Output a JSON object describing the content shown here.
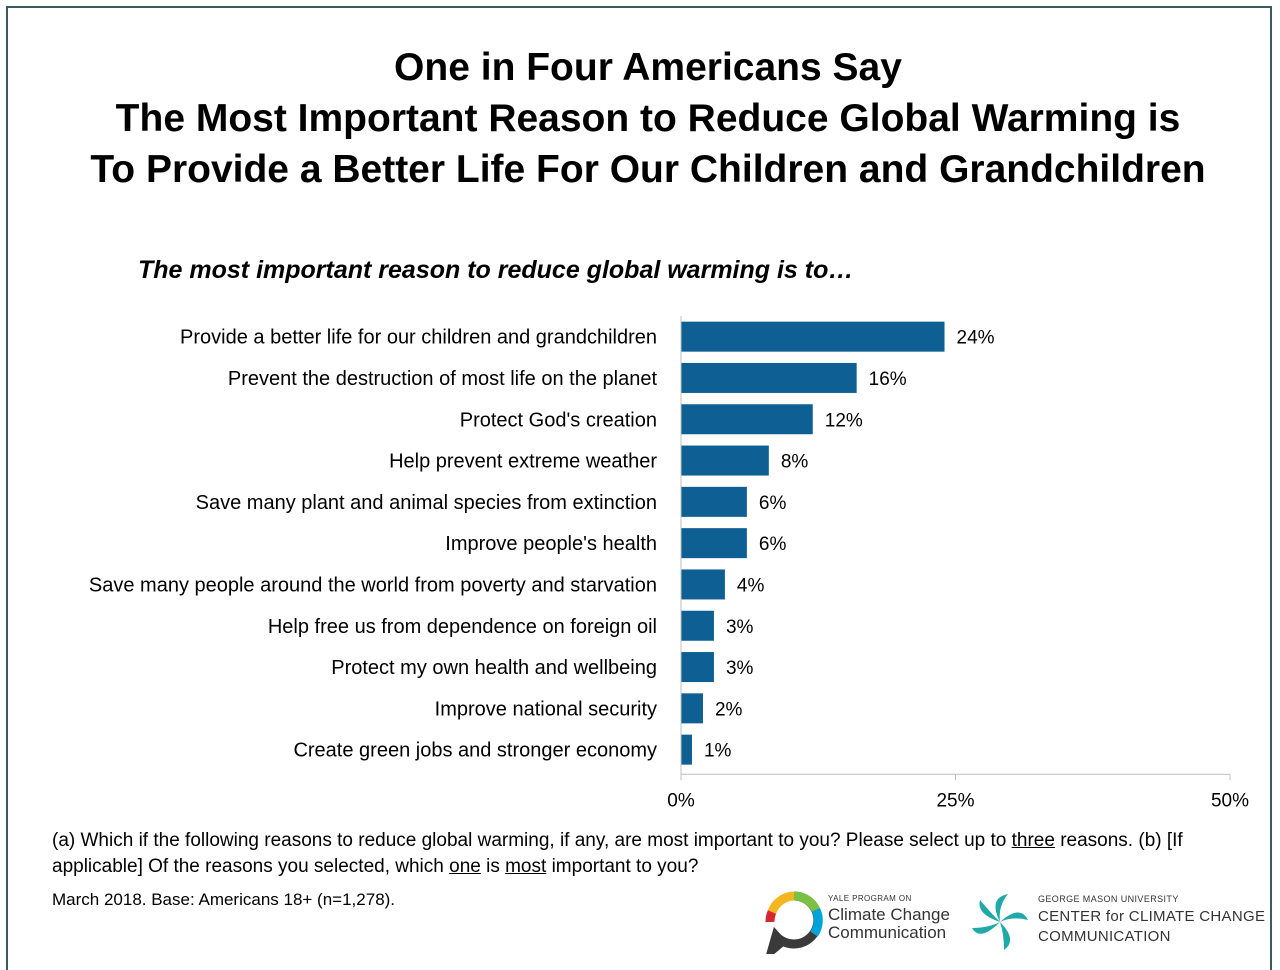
{
  "title_lines": [
    "One in Four Americans Say",
    "The Most Important Reason to Reduce Global Warming is",
    "To Provide a Better Life For Our Children and Grandchildren"
  ],
  "chart_data": {
    "type": "bar",
    "orientation": "horizontal",
    "subtitle": "The most important reason to reduce global warming is to…",
    "categories": [
      "Provide a better life for our children and grandchildren",
      "Prevent the destruction of most life on the planet",
      "Protect God's creation",
      "Help prevent extreme weather",
      "Save many plant and animal species from extinction",
      "Improve people's health",
      "Save many people around the world from poverty and starvation",
      "Help free us from dependence on foreign oil",
      "Protect my own health and wellbeing",
      "Improve national security",
      "Create green jobs and stronger economy"
    ],
    "values": [
      24,
      16,
      12,
      8,
      6,
      6,
      4,
      3,
      3,
      2,
      1
    ],
    "value_labels": [
      "24%",
      "16%",
      "12%",
      "8%",
      "6%",
      "6%",
      "4%",
      "3%",
      "3%",
      "2%",
      "1%"
    ],
    "xlim": [
      0,
      50
    ],
    "xticks": [
      0,
      25,
      50
    ],
    "xtick_labels": [
      "0%",
      "25%",
      "50%"
    ],
    "bar_color": "#0e5f93",
    "grid": false
  },
  "footnote": {
    "q_part1": "(a) Which if the following reasons to reduce global warming, if any, are most important to you? Please select up to ",
    "q_three": "three",
    "q_part2": " reasons. (b) [If applicable] Of the reasons you selected, which ",
    "q_one": "one",
    "q_part3": " is ",
    "q_most": "most",
    "q_part4": " important to you?",
    "base": "March 2018. Base: Americans 18+ (n=1,278)."
  },
  "logos": {
    "yale_small": "YALE PROGRAM ON",
    "yale_line1": "Climate Change",
    "yale_line2": "Communication",
    "gmu_small": "GEORGE MASON UNIVERSITY",
    "gmu_line1": "CENTER for CLIMATE CHANGE",
    "gmu_line2": "COMMUNICATION"
  }
}
